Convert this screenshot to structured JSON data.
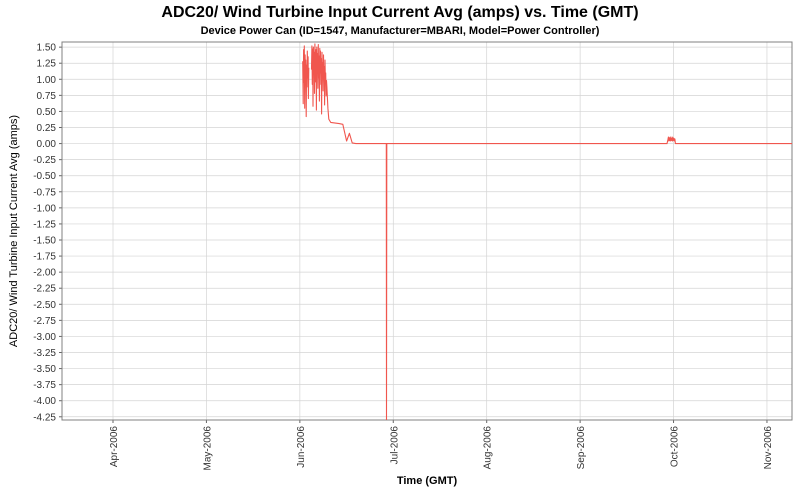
{
  "chart_data": {
    "type": "line",
    "title": "ADC20/ Wind Turbine Input Current Avg (amps) vs. Time (GMT)",
    "subtitle": "Device Power Can (ID=1547, Manufacturer=MBARI, Model=Power Controller)",
    "xlabel": "Time (GMT)",
    "ylabel": "ADC20/ Wind Turbine Input Current Avg (amps)",
    "x_unit": "months since Apr-2006",
    "xlim": [
      -0.546,
      7.268
    ],
    "ylim": [
      -4.3,
      1.58
    ],
    "grid": true,
    "legend": "none",
    "x_ticks": {
      "labels": [
        "Apr-2006",
        "May-2006",
        "Jun-2006",
        "Jul-2006",
        "Aug-2006",
        "Sep-2006",
        "Oct-2006",
        "Nov-2006"
      ],
      "positions": [
        0,
        1,
        2,
        3,
        4,
        5,
        6,
        7
      ]
    },
    "y_ticks": [
      1.5,
      1.25,
      1.0,
      0.75,
      0.5,
      0.25,
      0.0,
      -0.25,
      -0.5,
      -0.75,
      -1.0,
      -1.25,
      -1.5,
      -1.75,
      -2.0,
      -2.25,
      -2.5,
      -2.75,
      -3.0,
      -3.25,
      -3.5,
      -3.75,
      -4.0,
      -4.25
    ],
    "colors": {
      "line": "#f0564e",
      "grid": "#d4d4d4",
      "frame": "#808080",
      "axis": "#666666",
      "text": "#333333"
    },
    "series": [
      {
        "name": "ADC20/ Wind Turbine Input Current Avg (amps)",
        "segments": [
          [
            [
              2.031,
              1.28
            ],
            [
              2.036,
              0.62
            ],
            [
              2.04,
              1.46
            ],
            [
              2.044,
              0.95
            ],
            [
              2.048,
              1.52
            ],
            [
              2.052,
              0.55
            ],
            [
              2.056,
              1.38
            ],
            [
              2.06,
              1.05
            ],
            [
              2.064,
              1.3
            ],
            [
              2.068,
              0.42
            ],
            [
              2.072,
              1.22
            ],
            [
              2.076,
              0.88
            ],
            [
              2.08,
              1.44
            ],
            [
              2.084,
              1.02
            ],
            [
              2.088,
              1.35
            ],
            [
              2.092,
              0.7
            ],
            [
              2.096,
              1.18
            ]
          ],
          [
            [
              2.125,
              1.15
            ],
            [
              2.129,
              1.52
            ],
            [
              2.133,
              0.92
            ],
            [
              2.137,
              1.47
            ],
            [
              2.141,
              0.58
            ],
            [
              2.145,
              1.5
            ],
            [
              2.149,
              1.12
            ],
            [
              2.153,
              1.42
            ],
            [
              2.157,
              0.78
            ],
            [
              2.161,
              1.55
            ],
            [
              2.165,
              1.2
            ],
            [
              2.169,
              0.96
            ],
            [
              2.173,
              1.46
            ],
            [
              2.177,
              0.52
            ],
            [
              2.181,
              1.5
            ],
            [
              2.185,
              1.16
            ],
            [
              2.189,
              1.4
            ],
            [
              2.193,
              0.86
            ],
            [
              2.197,
              1.54
            ],
            [
              2.201,
              1.02
            ],
            [
              2.205,
              1.36
            ],
            [
              2.209,
              0.66
            ],
            [
              2.213,
              1.48
            ],
            [
              2.217,
              1.1
            ],
            [
              2.221,
              1.44
            ],
            [
              2.225,
              0.92
            ],
            [
              2.229,
              1.32
            ],
            [
              2.233,
              0.46
            ],
            [
              2.237,
              1.42
            ],
            [
              2.241,
              1.06
            ],
            [
              2.245,
              1.26
            ],
            [
              2.249,
              0.82
            ],
            [
              2.253,
              1.38
            ],
            [
              2.257,
              1.0
            ],
            [
              2.261,
              1.2
            ],
            [
              2.265,
              0.6
            ],
            [
              2.269,
              1.3
            ],
            [
              2.273,
              0.94
            ],
            [
              2.277,
              1.1
            ],
            [
              2.281,
              0.74
            ],
            [
              2.285,
              0.98
            ],
            [
              2.29,
              0.88
            ],
            [
              2.3,
              0.55
            ],
            [
              2.31,
              0.38
            ],
            [
              2.33,
              0.33
            ],
            [
              2.42,
              0.31
            ],
            [
              2.46,
              0.3
            ],
            [
              2.5,
              0.04
            ],
            [
              2.53,
              0.16
            ],
            [
              2.56,
              0.01
            ],
            [
              2.6,
              0.0
            ],
            [
              2.925,
              0.0
            ],
            [
              2.928,
              -4.3
            ],
            [
              2.931,
              0.0
            ],
            [
              3.5,
              0.0
            ],
            [
              5.0,
              0.0
            ],
            [
              5.93,
              0.0
            ],
            [
              5.94,
              0.06
            ],
            [
              5.945,
              0.1
            ],
            [
              5.95,
              0.04
            ],
            [
              5.955,
              0.09
            ],
            [
              5.96,
              0.05
            ],
            [
              5.965,
              0.1
            ],
            [
              5.97,
              0.04
            ],
            [
              5.975,
              0.08
            ],
            [
              5.98,
              0.05
            ],
            [
              5.985,
              0.1
            ],
            [
              5.99,
              0.04
            ],
            [
              5.995,
              0.09
            ],
            [
              6.0,
              0.05
            ],
            [
              6.005,
              0.08
            ],
            [
              6.01,
              0.04
            ],
            [
              6.015,
              0.07
            ],
            [
              6.02,
              0.0
            ],
            [
              6.2,
              0.0
            ],
            [
              7.268,
              0.0
            ]
          ]
        ]
      }
    ]
  }
}
